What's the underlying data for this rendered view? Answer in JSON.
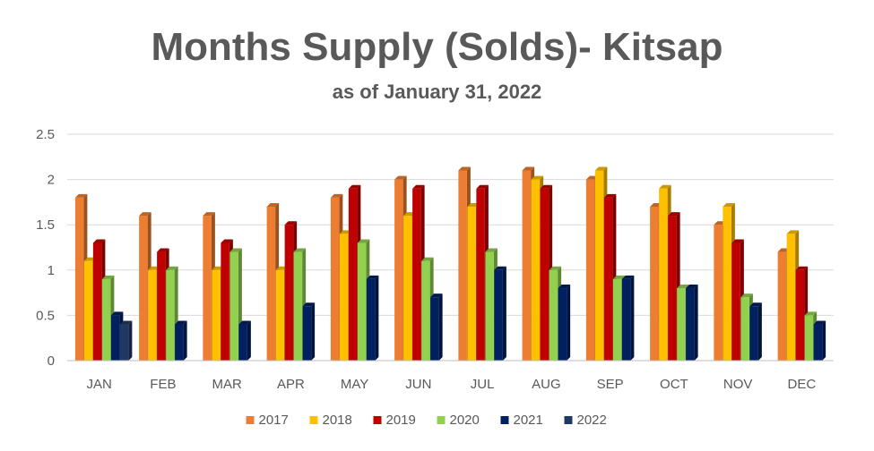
{
  "chart_data": {
    "type": "bar",
    "title": "Months Supply (Solds)- Kitsap",
    "subtitle": "as of January 31, 2022",
    "categories": [
      "JAN",
      "FEB",
      "MAR",
      "APR",
      "MAY",
      "JUN",
      "JUL",
      "AUG",
      "SEP",
      "OCT",
      "NOV",
      "DEC"
    ],
    "ylim": [
      0,
      2.5
    ],
    "yticks": [
      "0",
      "0.5",
      "1",
      "1.5",
      "2",
      "2.5"
    ],
    "grid": true,
    "legend_position": "bottom",
    "series": [
      {
        "name": "2017",
        "color": "#ED7D31",
        "values": [
          1.8,
          1.6,
          1.6,
          1.7,
          1.8,
          2.0,
          2.1,
          2.1,
          2.0,
          1.7,
          1.5,
          1.2
        ]
      },
      {
        "name": "2018",
        "color": "#FFC000",
        "values": [
          1.1,
          1.0,
          1.0,
          1.0,
          1.4,
          1.6,
          1.7,
          2.0,
          2.1,
          1.9,
          1.7,
          1.4
        ]
      },
      {
        "name": "2019",
        "color": "#C00000",
        "values": [
          1.3,
          1.2,
          1.3,
          1.5,
          1.9,
          1.9,
          1.9,
          1.9,
          1.8,
          1.6,
          1.3,
          1.0
        ]
      },
      {
        "name": "2020",
        "color": "#92D050",
        "values": [
          0.9,
          1.0,
          1.2,
          1.2,
          1.3,
          1.1,
          1.2,
          1.0,
          0.9,
          0.8,
          0.7,
          0.5
        ]
      },
      {
        "name": "2021",
        "color": "#002060",
        "values": [
          0.5,
          0.4,
          0.4,
          0.6,
          0.9,
          0.7,
          1.0,
          0.8,
          0.9,
          0.8,
          0.6,
          0.4
        ]
      },
      {
        "name": "2022",
        "color": "#1F3864",
        "values": [
          0.4,
          null,
          null,
          null,
          null,
          null,
          null,
          null,
          null,
          null,
          null,
          null
        ]
      }
    ]
  }
}
